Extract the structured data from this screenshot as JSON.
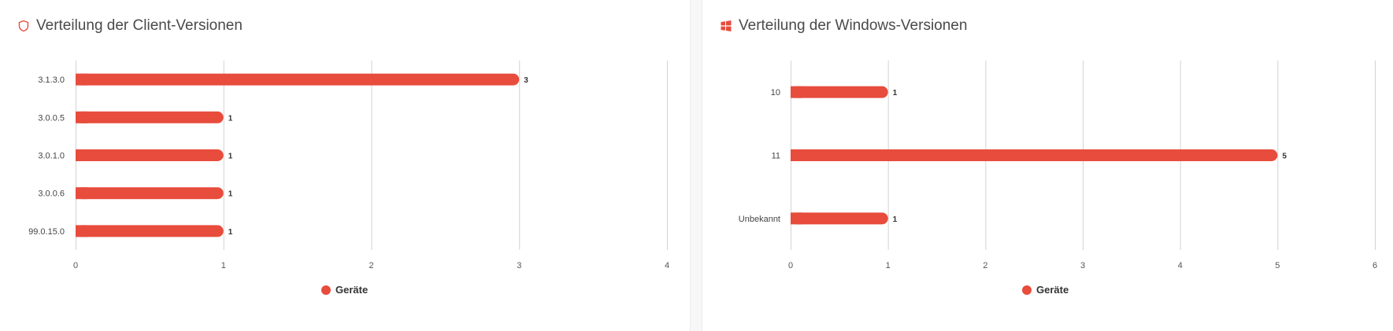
{
  "colors": {
    "bar": "#e74c3c",
    "grid": "#d3d3d3",
    "icon": "#e74c3c"
  },
  "panels": [
    {
      "icon": "shield-icon",
      "title": "Verteilung der Client-Versionen",
      "legend": "Geräte"
    },
    {
      "icon": "windows-icon",
      "title": "Verteilung der Windows-Versionen",
      "legend": "Geräte"
    }
  ],
  "chart_data": [
    {
      "type": "bar",
      "orientation": "horizontal",
      "categories": [
        "3.1.3.0",
        "3.0.0.5",
        "3.0.1.0",
        "3.0.0.6",
        "99.0.15.0"
      ],
      "series": [
        {
          "name": "Geräte",
          "values": [
            3,
            1,
            1,
            1,
            1
          ]
        }
      ],
      "xlim": [
        0,
        4
      ],
      "xticks": [
        0,
        1,
        2,
        3,
        4
      ],
      "grid": true,
      "legend_position": "bottom"
    },
    {
      "type": "bar",
      "orientation": "horizontal",
      "categories": [
        "10",
        "11",
        "Unbekannt"
      ],
      "series": [
        {
          "name": "Geräte",
          "values": [
            1,
            5,
            1
          ]
        }
      ],
      "xlim": [
        0,
        6
      ],
      "xticks": [
        0,
        1,
        2,
        3,
        4,
        5,
        6
      ],
      "grid": true,
      "legend_position": "bottom"
    }
  ]
}
